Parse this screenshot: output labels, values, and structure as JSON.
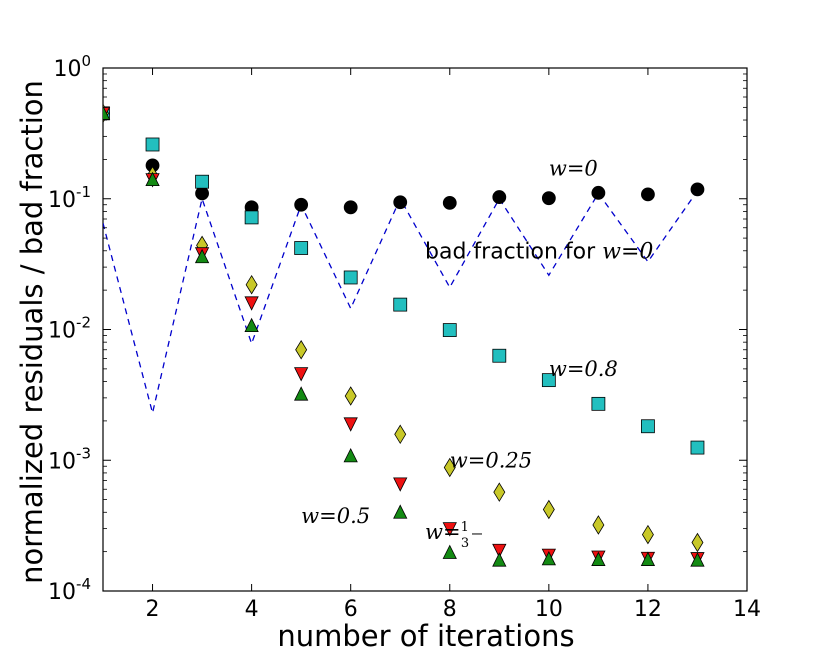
{
  "chart_data": {
    "type": "scatter",
    "xlabel": "number of iterations",
    "ylabel": "normalized residuals / bad fraction",
    "xlim": [
      1,
      14
    ],
    "ylim": [
      0.0001,
      1
    ],
    "yscale": "log",
    "x_ticks": [
      "2",
      "4",
      "6",
      "8",
      "10",
      "12",
      "14"
    ],
    "y_ticks": [
      {
        "base": "10",
        "exp": "-4",
        "value": 0.0001
      },
      {
        "base": "10",
        "exp": "-3",
        "value": 0.001
      },
      {
        "base": "10",
        "exp": "-2",
        "value": 0.01
      },
      {
        "base": "10",
        "exp": "-1",
        "value": 0.1
      },
      {
        "base": "10",
        "exp": "0",
        "value": 1
      }
    ],
    "series": [
      {
        "name": "bad fraction for w=0",
        "marker": "dashed-line",
        "color": "#0000cc",
        "x": [
          1,
          2,
          3,
          4,
          5,
          6,
          7,
          8,
          9,
          10,
          11,
          12,
          13
        ],
        "y": [
          0.065,
          0.0023,
          0.1,
          0.0078,
          0.09,
          0.0145,
          0.1,
          0.021,
          0.1,
          0.026,
          0.11,
          0.033,
          0.115
        ]
      },
      {
        "name": "w=0",
        "marker": "circle",
        "color": "#000000",
        "x": [
          1,
          2,
          3,
          4,
          5,
          6,
          7,
          8,
          9,
          10,
          11,
          12,
          13
        ],
        "y": [
          0.45,
          0.18,
          0.11,
          0.086,
          0.09,
          0.086,
          0.094,
          0.093,
          0.103,
          0.101,
          0.111,
          0.108,
          0.118
        ]
      },
      {
        "name": "w=0.8",
        "marker": "square",
        "color": "#22bfbf",
        "x": [
          1,
          2,
          3,
          4,
          5,
          6,
          7,
          8,
          9,
          10,
          11,
          12,
          13
        ],
        "y": [
          0.45,
          0.26,
          0.135,
          0.072,
          0.042,
          0.025,
          0.0155,
          0.0099,
          0.0063,
          0.0041,
          0.0027,
          0.00182,
          0.00125
        ]
      },
      {
        "name": "w=0.25",
        "marker": "diamond",
        "color": "#c8c828",
        "x": [
          1,
          2,
          3,
          4,
          5,
          6,
          7,
          8,
          9,
          10,
          11,
          12,
          13
        ],
        "y": [
          0.45,
          0.15,
          0.044,
          0.022,
          0.007,
          0.0031,
          0.00158,
          0.00088,
          0.00057,
          0.00042,
          0.00032,
          0.00027,
          0.000235
        ]
      },
      {
        "name": "w=1/3",
        "marker": "triangle-down",
        "color": "#ee1111",
        "x": [
          1,
          2,
          3,
          4,
          5,
          6,
          7,
          8,
          9,
          10,
          11,
          12,
          13
        ],
        "y": [
          0.45,
          0.14,
          0.038,
          0.016,
          0.0046,
          0.0019,
          0.00066,
          0.0003,
          0.000205,
          0.000188,
          0.000182,
          0.000178,
          0.000177
        ]
      },
      {
        "name": "w=0.5",
        "marker": "triangle-up",
        "color": "#138a13",
        "x": [
          1,
          2,
          3,
          4,
          5,
          6,
          7,
          8,
          9,
          10,
          11,
          12,
          13
        ],
        "y": [
          0.45,
          0.14,
          0.036,
          0.0107,
          0.0032,
          0.00108,
          0.0004,
          0.000197,
          0.000172,
          0.000176,
          0.000174,
          0.000174,
          0.000172
        ]
      }
    ],
    "annotations": [
      {
        "id": "w0",
        "text": "w=0",
        "x": 10,
        "y": 0.15
      },
      {
        "id": "bad",
        "prefix": "bad fraction for ",
        "text": "w=0",
        "x": 7.5,
        "y": 0.035
      },
      {
        "id": "w08",
        "text": "w=0.8",
        "x": 10,
        "y": 0.0044
      },
      {
        "id": "w025",
        "text": "w=0.25",
        "x": 8,
        "y": 0.00088
      },
      {
        "id": "w05",
        "text": "w=0.5",
        "x": 5,
        "y": 0.00033
      },
      {
        "id": "w13",
        "prefix": "w=",
        "num": "1",
        "den": "3",
        "x": 7.5,
        "y": 0.00025
      }
    ]
  }
}
